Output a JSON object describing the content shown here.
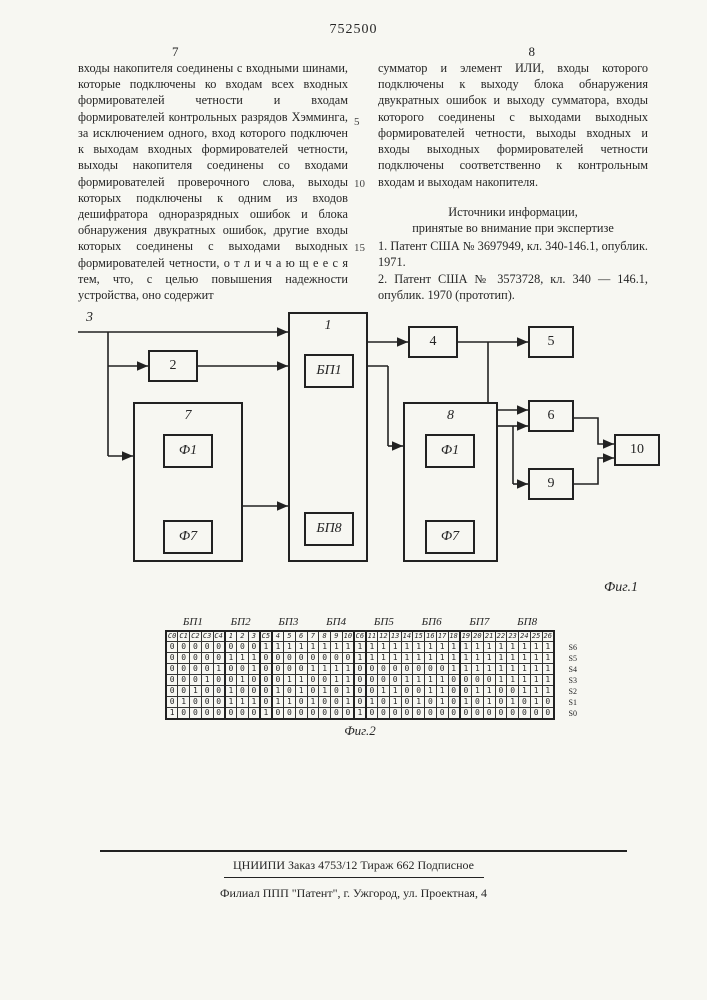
{
  "doc_number": "752500",
  "page_left": "7",
  "page_right": "8",
  "line_nums": {
    "five": "5",
    "ten": "10",
    "fifteen": "15"
  },
  "left_col": "входы накопителя соединены с входными шинами, которые подключены ко входам всех входных формирователей четности и входам формирователей контрольных разрядов Хэмминга, за исключением одного, вход которого подключен к выходам входных формирователей четности, выходы накопителя соединены со входами формирователей проверочного слова, выходы которых подключены к одним из входов дешифратора одноразрядных ошибок и блока обнаружения двукратных ошибок, другие входы которых соединены с выходами выходных формирователей четности, о т л и ч а ю щ е е с я  тем, что, с целью повышения надежности устройства, оно содержит",
  "right_col_p1": "сумматор и элемент ИЛИ, входы которого подключены к выходу блока обнаружения двукратных ошибок и выходу сумматора, входы которого соединены с выходами выходных формирователей четности, выходы входных и входы выходных формирователей четности подключены соответственно к контрольным входам и выходам накопителя.",
  "src_head": "Источники информации,\nпринятые во внимание при экспертизе",
  "src1": "1. Патент США № 3697949, кл. 340-146.1, опублик. 1971.",
  "src2": "2. Патент США № 3573728, кл. 340 — 146.1, опублик. 1970 (прототип).",
  "diag": {
    "inlet": "3",
    "b2": "2",
    "b4": "4",
    "b5": "5",
    "b6": "6",
    "b9": "9",
    "b10": "10",
    "big7": "7",
    "big1": "1",
    "big8": "8",
    "in7a": "Ф1",
    "in7b": "Ф7",
    "in1a": "БП1",
    "in1b": "БП8",
    "in8a": "Ф1",
    "in8b": "Ф7",
    "caption1": "Фиг.1"
  },
  "fig2": {
    "groups": [
      "БП1",
      "БП2",
      "БП3",
      "БП4",
      "БП5",
      "БП6",
      "БП7",
      "БП8"
    ],
    "cols": [
      "C0",
      "C1",
      "C2",
      "C3",
      "C4",
      "1",
      "2",
      "3",
      "C5",
      "4",
      "5",
      "6",
      "7",
      "8",
      "9",
      "10",
      "C6",
      "11",
      "12",
      "13",
      "14",
      "15",
      "16",
      "17",
      "18",
      "19",
      "20",
      "21",
      "22",
      "23",
      "24",
      "25",
      "26"
    ],
    "row_labels": [
      "S6",
      "S5",
      "S4",
      "S3",
      "S2",
      "S1",
      "S0"
    ],
    "rows": [
      [
        "0",
        "0",
        "0",
        "0",
        "0",
        "0",
        "0",
        "0",
        "1",
        "1",
        "1",
        "1",
        "1",
        "1",
        "1",
        "1",
        "1",
        "1",
        "1",
        "1",
        "1",
        "1",
        "1",
        "1",
        "1",
        "1",
        "1",
        "1",
        "1",
        "1",
        "1",
        "1",
        "1"
      ],
      [
        "0",
        "0",
        "0",
        "0",
        "0",
        "1",
        "1",
        "1",
        "0",
        "0",
        "0",
        "0",
        "0",
        "0",
        "0",
        "0",
        "1",
        "1",
        "1",
        "1",
        "1",
        "1",
        "1",
        "1",
        "1",
        "1",
        "1",
        "1",
        "1",
        "1",
        "1",
        "1",
        "1"
      ],
      [
        "0",
        "0",
        "0",
        "0",
        "1",
        "0",
        "0",
        "1",
        "0",
        "0",
        "0",
        "0",
        "1",
        "1",
        "1",
        "1",
        "0",
        "0",
        "0",
        "0",
        "0",
        "0",
        "0",
        "0",
        "1",
        "1",
        "1",
        "1",
        "1",
        "1",
        "1",
        "1",
        "1"
      ],
      [
        "0",
        "0",
        "0",
        "1",
        "0",
        "0",
        "1",
        "0",
        "0",
        "0",
        "1",
        "1",
        "0",
        "0",
        "1",
        "1",
        "0",
        "0",
        "0",
        "0",
        "1",
        "1",
        "1",
        "1",
        "0",
        "0",
        "0",
        "0",
        "1",
        "1",
        "1",
        "1",
        "1"
      ],
      [
        "0",
        "0",
        "1",
        "0",
        "0",
        "1",
        "0",
        "0",
        "0",
        "1",
        "0",
        "1",
        "0",
        "1",
        "0",
        "1",
        "0",
        "0",
        "1",
        "1",
        "0",
        "0",
        "1",
        "1",
        "0",
        "0",
        "1",
        "1",
        "0",
        "0",
        "1",
        "1",
        "1"
      ],
      [
        "0",
        "1",
        "0",
        "0",
        "0",
        "1",
        "1",
        "1",
        "0",
        "1",
        "1",
        "0",
        "1",
        "0",
        "0",
        "1",
        "0",
        "1",
        "0",
        "1",
        "0",
        "1",
        "0",
        "1",
        "0",
        "1",
        "0",
        "1",
        "0",
        "1",
        "0",
        "1",
        "0"
      ],
      [
        "1",
        "0",
        "0",
        "0",
        "0",
        "0",
        "0",
        "0",
        "1",
        "0",
        "0",
        "0",
        "0",
        "0",
        "0",
        "0",
        "1",
        "0",
        "0",
        "0",
        "0",
        "0",
        "0",
        "0",
        "0",
        "0",
        "0",
        "0",
        "0",
        "0",
        "0",
        "0",
        "0"
      ]
    ],
    "caption": "Фиг.2"
  },
  "imprint1": "ЦНИИПИ Заказ 4753/12  Тираж 662  Подписное",
  "imprint2": "Филиал ППП \"Патент\", г. Ужгород, ул. Проектная, 4"
}
